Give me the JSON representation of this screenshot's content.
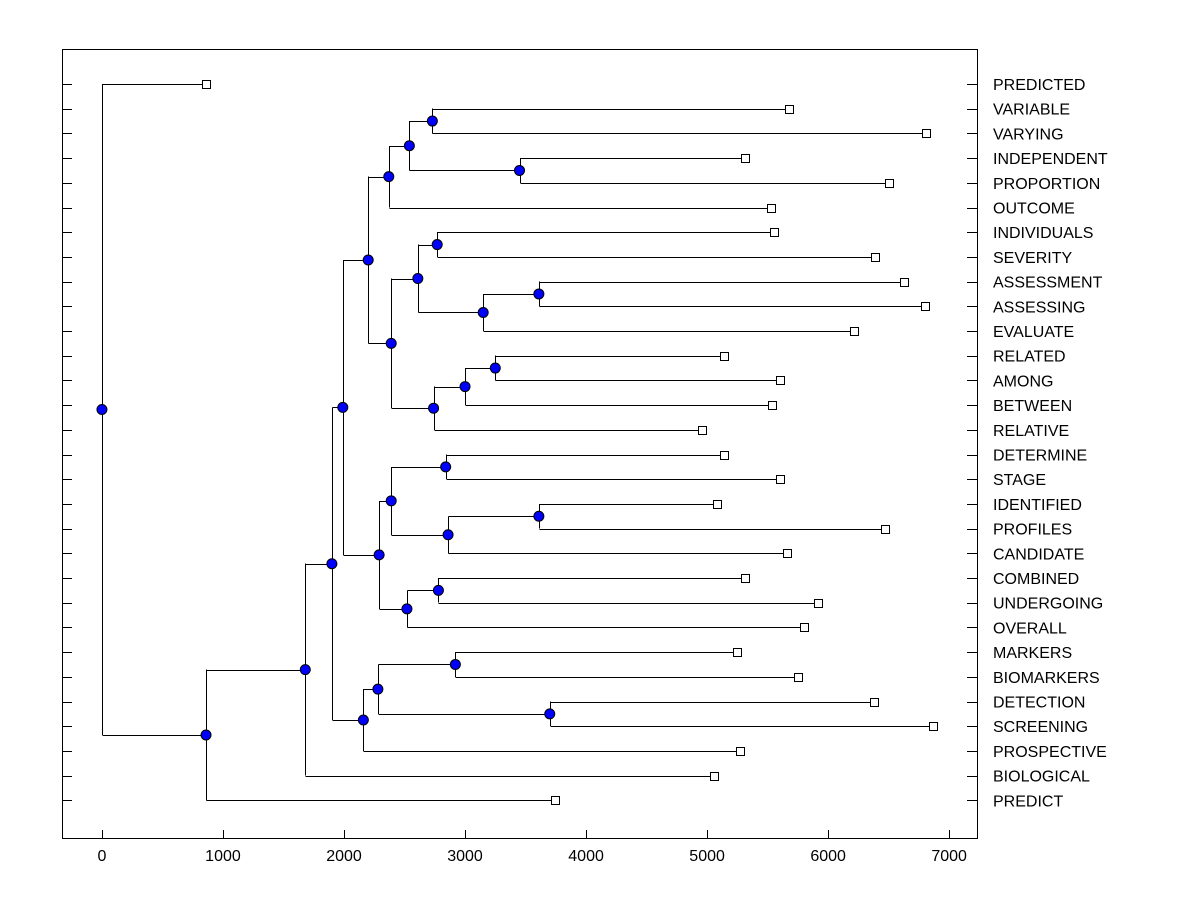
{
  "chart_data": {
    "type": "dendrogram",
    "orientation": "horizontal",
    "x_axis": {
      "min": -330,
      "max": 7230,
      "ticks": [
        0,
        1000,
        2000,
        3000,
        4000,
        5000,
        6000,
        7000
      ],
      "tick_labels": [
        "0",
        "1000",
        "2000",
        "3000",
        "4000",
        "5000",
        "6000",
        "7000"
      ]
    },
    "leaves": [
      {
        "label": "PREDICTED",
        "x": 860
      },
      {
        "label": "VARIABLE",
        "x": 5680
      },
      {
        "label": "VARYING",
        "x": 6810
      },
      {
        "label": "INDEPENDENT",
        "x": 5310
      },
      {
        "label": "PROPORTION",
        "x": 6500
      },
      {
        "label": "OUTCOME",
        "x": 5530
      },
      {
        "label": "INDIVIDUALS",
        "x": 5550
      },
      {
        "label": "SEVERITY",
        "x": 6390
      },
      {
        "label": "ASSESSMENT",
        "x": 6630
      },
      {
        "label": "ASSESSING",
        "x": 6800
      },
      {
        "label": "EVALUATE",
        "x": 6210
      },
      {
        "label": "RELATED",
        "x": 5140
      },
      {
        "label": "AMONG",
        "x": 5600
      },
      {
        "label": "BETWEEN",
        "x": 5540
      },
      {
        "label": "RELATIVE",
        "x": 4960
      },
      {
        "label": "DETERMINE",
        "x": 5140
      },
      {
        "label": "STAGE",
        "x": 5600
      },
      {
        "label": "IDENTIFIED",
        "x": 5080
      },
      {
        "label": "PROFILES",
        "x": 6470
      },
      {
        "label": "CANDIDATE",
        "x": 5660
      },
      {
        "label": "COMBINED",
        "x": 5310
      },
      {
        "label": "UNDERGOING",
        "x": 5920
      },
      {
        "label": "OVERALL",
        "x": 5800
      },
      {
        "label": "MARKERS",
        "x": 5250
      },
      {
        "label": "BIOMARKERS",
        "x": 5750
      },
      {
        "label": "DETECTION",
        "x": 6380
      },
      {
        "label": "SCREENING",
        "x": 6870
      },
      {
        "label": "PROSPECTIVE",
        "x": 5270
      },
      {
        "label": "BIOLOGICAL",
        "x": 5060
      },
      {
        "label": "PREDICT",
        "x": 3740
      }
    ],
    "merges": [
      {
        "id": "m1",
        "x": 2730,
        "children": [
          "L1",
          "L2"
        ]
      },
      {
        "id": "m2",
        "x": 3450,
        "children": [
          "L3",
          "L4"
        ]
      },
      {
        "id": "m3",
        "x": 2540,
        "children": [
          "m1",
          "m2"
        ]
      },
      {
        "id": "m4",
        "x": 2370,
        "children": [
          "m3",
          "L5"
        ]
      },
      {
        "id": "m5",
        "x": 2770,
        "children": [
          "L6",
          "L7"
        ]
      },
      {
        "id": "m6",
        "x": 3610,
        "children": [
          "L8",
          "L9"
        ]
      },
      {
        "id": "m7",
        "x": 3150,
        "children": [
          "m6",
          "L10"
        ]
      },
      {
        "id": "m8",
        "x": 2610,
        "children": [
          "m5",
          "m7"
        ]
      },
      {
        "id": "m9",
        "x": 3250,
        "children": [
          "L11",
          "L12"
        ]
      },
      {
        "id": "m10",
        "x": 3000,
        "children": [
          "m9",
          "L13"
        ]
      },
      {
        "id": "m11",
        "x": 2740,
        "children": [
          "m10",
          "L14"
        ]
      },
      {
        "id": "m12",
        "x": 2390,
        "children": [
          "m8",
          "m11"
        ]
      },
      {
        "id": "m13",
        "x": 2200,
        "children": [
          "m4",
          "m12"
        ]
      },
      {
        "id": "m14",
        "x": 2840,
        "children": [
          "L15",
          "L16"
        ]
      },
      {
        "id": "m15",
        "x": 3610,
        "children": [
          "L17",
          "L18"
        ]
      },
      {
        "id": "m16",
        "x": 2860,
        "children": [
          "m15",
          "L19"
        ]
      },
      {
        "id": "m17",
        "x": 2390,
        "children": [
          "m14",
          "m16"
        ]
      },
      {
        "id": "m18",
        "x": 2780,
        "children": [
          "L20",
          "L21"
        ]
      },
      {
        "id": "m19",
        "x": 2520,
        "children": [
          "m18",
          "L22"
        ]
      },
      {
        "id": "m20",
        "x": 2290,
        "children": [
          "m17",
          "m19"
        ]
      },
      {
        "id": "m21",
        "x": 1990,
        "children": [
          "m13",
          "m20"
        ]
      },
      {
        "id": "m22",
        "x": 2920,
        "children": [
          "L23",
          "L24"
        ]
      },
      {
        "id": "m23",
        "x": 3700,
        "children": [
          "L25",
          "L26"
        ]
      },
      {
        "id": "m24",
        "x": 2280,
        "children": [
          "m22",
          "m23"
        ]
      },
      {
        "id": "m25",
        "x": 2160,
        "children": [
          "m24",
          "L27"
        ]
      },
      {
        "id": "m26",
        "x": 1900,
        "children": [
          "m21",
          "m25"
        ]
      },
      {
        "id": "m27",
        "x": 1680,
        "children": [
          "m26",
          "L28"
        ]
      },
      {
        "id": "m28",
        "x": 860,
        "children": [
          "m27",
          "L29"
        ]
      },
      {
        "id": "m29",
        "x": 0,
        "children": [
          "L0",
          "m28"
        ]
      }
    ]
  }
}
